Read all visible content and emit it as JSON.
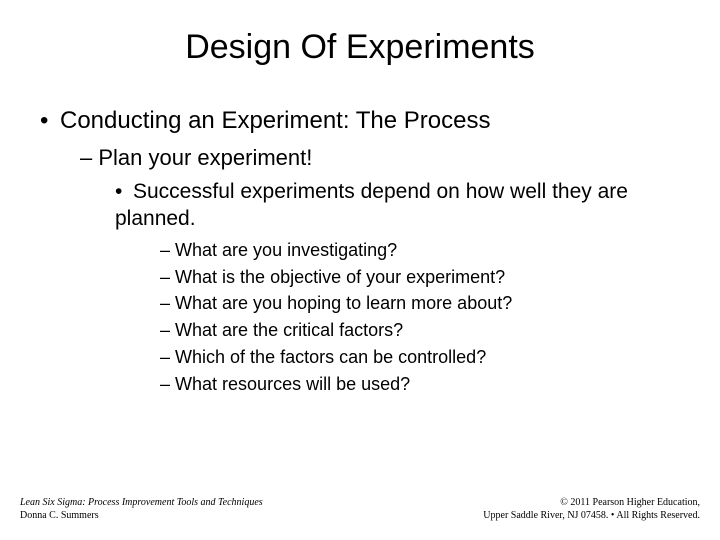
{
  "title": "Design Of Experiments",
  "content": {
    "level1": {
      "bullet": "•",
      "text": "Conducting an Experiment: The Process"
    },
    "level2": {
      "dash": "–",
      "text": "Plan your experiment!"
    },
    "level3": {
      "bullet": "•",
      "text": "Successful experiments depend on how well they are planned."
    },
    "level4": [
      {
        "dash": "–",
        "text": "What are you investigating?"
      },
      {
        "dash": "–",
        "text": "What is the objective of your experiment?"
      },
      {
        "dash": "–",
        "text": "What are you hoping to learn more about?"
      },
      {
        "dash": "–",
        "text": "What are the critical factors?"
      },
      {
        "dash": "–",
        "text": "Which of the factors can be controlled?"
      },
      {
        "dash": "–",
        "text": "What resources will be used?"
      }
    ]
  },
  "footer": {
    "left_title": "Lean Six Sigma: Process Improvement Tools and Techniques",
    "left_author": "Donna C. Summers",
    "right_line1": "© 2011 Pearson Higher Education,",
    "right_line2": "Upper Saddle River, NJ 07458. • All Rights Reserved."
  },
  "styling": {
    "background_color": "#ffffff",
    "text_color": "#000000",
    "title_fontsize": 34,
    "level1_fontsize": 24,
    "level2_fontsize": 22,
    "level3_fontsize": 21,
    "level4_fontsize": 18,
    "footer_fontsize": 10,
    "slide_width": 720,
    "slide_height": 540
  }
}
